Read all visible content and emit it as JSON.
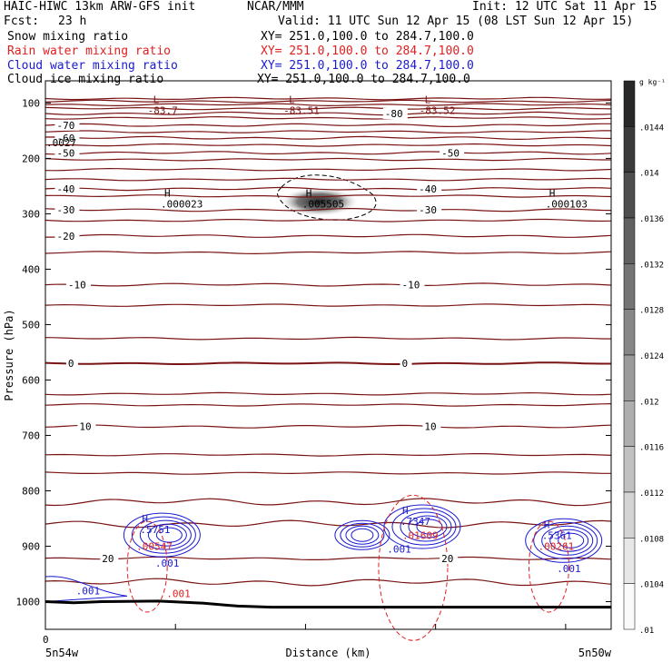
{
  "header": {
    "model": "HAIC-HIWC 13km ARW-GFS init",
    "org": "NCAR/MMM",
    "init": "Init: 12 UTC Sat 11 Apr 15",
    "fcst_label": "Fcst:",
    "fcst_value": "23 h",
    "valid": "Valid: 11 UTC Sun 12 Apr 15 (08 LST Sun 12 Apr 15)"
  },
  "fields": [
    {
      "name": "Snow mixing ratio",
      "xy": "XY= 251.0,100.0 to 284.7,100.0",
      "color": "#000000"
    },
    {
      "name": "Rain water mixing ratio",
      "xy": "XY= 251.0,100.0 to 284.7,100.0",
      "color": "#e02020"
    },
    {
      "name": "Cloud water mixing ratio",
      "xy": "XY= 251.0,100.0 to 284.7,100.0",
      "color": "#1a1ad0"
    },
    {
      "name": "Cloud ice mixing ratio",
      "xy": "XY= 251.0,100.0 to 284.7,100.0",
      "color": "#000000"
    }
  ],
  "colors": {
    "temperature": "#7a1414",
    "terrain": "#000000",
    "rain": "#e02020",
    "cloud": "#1a1ad0",
    "frame": "#000000"
  },
  "chart_data": {
    "type": "cross-section",
    "xlabel": "Distance (km)",
    "ylabel": "Pressure (hPa)",
    "x_left_label": "5n54w",
    "x_right_label": "5n50w",
    "x_zero_label": "0",
    "ylim": [
      1050,
      60
    ],
    "yticks": [
      100,
      200,
      300,
      400,
      500,
      600,
      700,
      800,
      900,
      1000
    ],
    "colorbar": {
      "unit": "g kg⁻¹",
      "labels": [
        ".0144",
        ".014",
        ".0136",
        ".0132",
        ".0128",
        ".0124",
        ".012",
        ".0116",
        ".0112",
        ".0108",
        ".0104",
        ".01"
      ],
      "min": 0.01,
      "max": 0.0148,
      "step": 0.0004
    },
    "temperature_contours": [
      {
        "t": "-80",
        "p": 119,
        "label": true,
        "lx": 0.6
      },
      {
        "t": "-70",
        "p": 140,
        "label": true,
        "lx": 0.02
      },
      {
        "t": "-60",
        "p": 163,
        "label": true,
        "lx": 0.02
      },
      {
        "t": "-50",
        "p": 190,
        "label": true,
        "lx": 0.02,
        "lx2": 0.7
      },
      {
        "t": "-40",
        "p": 255,
        "label": true,
        "lx": 0.02,
        "lx2": 0.66
      },
      {
        "t": "-30",
        "p": 293,
        "label": true,
        "lx": 0.02,
        "lx2": 0.66
      },
      {
        "t": "-20",
        "p": 340,
        "label": true,
        "lx": 0.02
      },
      {
        "t": "-10",
        "p": 428,
        "label": true,
        "lx": 0.04,
        "lx2": 0.63
      },
      {
        "t": "0",
        "p": 570,
        "label": true,
        "lx": 0.04,
        "lx2": 0.63
      },
      {
        "t": "10",
        "p": 684,
        "label": true,
        "lx": 0.06,
        "lx2": 0.67
      },
      {
        "t": "20",
        "p": 922,
        "label": true,
        "lx": 0.1,
        "lx2": 0.7
      }
    ],
    "extra_isotherm_p": [
      92,
      97,
      103,
      110,
      127,
      152,
      176,
      202,
      220,
      238,
      268,
      312,
      370,
      465,
      525,
      625,
      645,
      735,
      768,
      820,
      860,
      965
    ],
    "lows": [
      {
        "label": "L",
        "value": "-83.7",
        "x": 0.2,
        "p": 100
      },
      {
        "label": "L",
        "value": "-83.51",
        "x": 0.44,
        "p": 100
      },
      {
        "label": "L",
        "value": "-83.52",
        "x": 0.68,
        "p": 100
      }
    ],
    "ice_highs": [
      {
        "label": "H",
        "value": ".000023",
        "x": 0.22,
        "p": 282
      },
      {
        "label": "H",
        "value": ".005505",
        "x": 0.47,
        "p": 282
      },
      {
        "label": "H",
        "value": ".000103",
        "x": 0.9,
        "p": 282
      }
    ],
    "left_edge_value": ".0027",
    "shading_center": {
      "x": 0.5,
      "p": 280,
      "value": 0.0148
    },
    "cloud_highs": [
      {
        "label": "H",
        "value": ".5751",
        "x": 0.19,
        "p": 870
      },
      {
        "label": "H",
        "value": ".7347",
        "x": 0.65,
        "p": 855
      },
      {
        "label": "H",
        "value": ".5361",
        "x": 0.9,
        "p": 880
      }
    ],
    "rain_values": [
      {
        "value": ".00547",
        "x": 0.18,
        "p": 900
      },
      {
        "value": ".01609",
        "x": 0.65,
        "p": 880
      },
      {
        "value": ".00261",
        "x": 0.89,
        "p": 900
      }
    ],
    "contour_level_labels": [
      {
        "value": ".001",
        "color": "cloud",
        "x": 0.21,
        "p": 930
      },
      {
        "value": ".001",
        "color": "rain",
        "x": 0.23,
        "p": 985
      },
      {
        "value": ".001",
        "color": "cloud",
        "x": 0.62,
        "p": 905
      },
      {
        "value": ".001",
        "color": "cloud",
        "x": 0.92,
        "p": 940
      },
      {
        "value": ".001",
        "color": "cloud",
        "x": 0.07,
        "p": 980
      }
    ],
    "terrain_p": [
      [
        0.0,
        1000
      ],
      [
        0.05,
        1002
      ],
      [
        0.1,
        1000
      ],
      [
        0.2,
        999
      ],
      [
        0.28,
        1003
      ],
      [
        0.34,
        1008
      ],
      [
        0.4,
        1010
      ],
      [
        0.55,
        1010
      ],
      [
        0.7,
        1010
      ],
      [
        0.85,
        1010
      ],
      [
        1.0,
        1010
      ]
    ]
  },
  "axis": {
    "x_left": "5n54w",
    "x_mid": "Distance (km)",
    "x_right": "5n50w",
    "zero": "0"
  }
}
